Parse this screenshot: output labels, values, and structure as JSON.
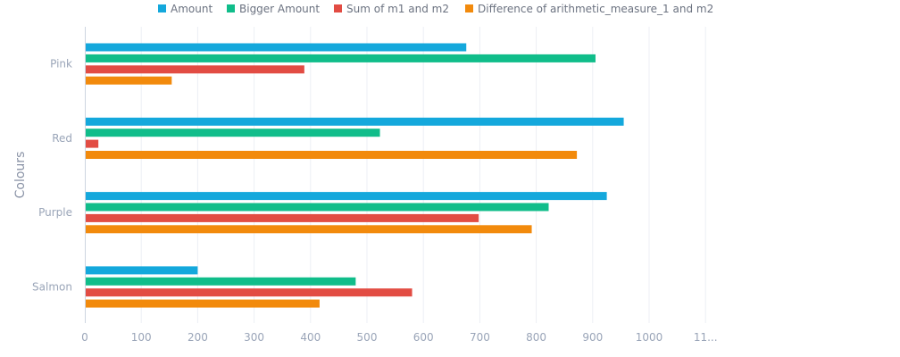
{
  "chart_data": {
    "type": "bar",
    "orientation": "horizontal",
    "categories": [
      "Pink",
      "Red",
      "Purple",
      "Salmon"
    ],
    "series": [
      {
        "name": "Amount",
        "color": "#14a8dc",
        "values": [
          676,
          955,
          925,
          200
        ]
      },
      {
        "name": "Bigger Amount",
        "color": "#10bd8a",
        "values": [
          905,
          523,
          822,
          480
        ]
      },
      {
        "name": "Sum of m1 and m2",
        "color": "#e24c43",
        "values": [
          389,
          24,
          698,
          580
        ]
      },
      {
        "name": "Difference of arithmetic_measure_1 and m2",
        "color": "#f28a0c",
        "values": [
          154,
          872,
          792,
          416
        ]
      }
    ],
    "xlim": [
      0,
      1100
    ],
    "x_ticks": [
      "0",
      "100",
      "200",
      "300",
      "400",
      "500",
      "600",
      "700",
      "800",
      "900",
      "1000",
      "11..."
    ],
    "ylabel": "Colours",
    "xlabel": "",
    "grid": true,
    "legend_position": "top"
  }
}
